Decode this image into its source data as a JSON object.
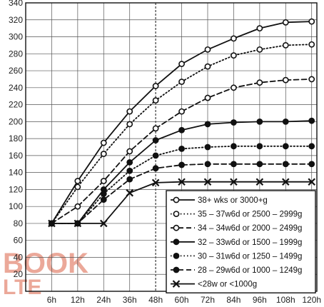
{
  "chart_data": {
    "type": "line",
    "title": "",
    "xlabel": "",
    "ylabel": "",
    "x": [
      "6h",
      "12h",
      "24h",
      "36h",
      "48h",
      "60h",
      "72h",
      "84h",
      "96h",
      "108h",
      "120h"
    ],
    "ylim": [
      0,
      340
    ],
    "yticks": [
      0,
      20,
      40,
      60,
      80,
      100,
      120,
      140,
      160,
      180,
      200,
      220,
      240,
      260,
      280,
      300,
      320,
      340
    ],
    "grid": true,
    "legend_position": "bottom-right",
    "series": [
      {
        "name": "38+ wks or 3000+g",
        "style": "solid",
        "marker": "open-circle",
        "color": "#111111",
        "values": [
          80,
          130,
          175,
          212,
          242,
          268,
          285,
          298,
          310,
          317,
          318
        ]
      },
      {
        "name": "35 – 37w6d or 2500 – 2999g",
        "style": "dotted",
        "marker": "open-circle",
        "color": "#111111",
        "values": [
          80,
          123,
          162,
          197,
          225,
          247,
          265,
          278,
          285,
          290,
          291
        ]
      },
      {
        "name": "34 – 34w6d or 2000 – 2499g",
        "style": "dashed",
        "marker": "open-circle",
        "color": "#111111",
        "values": [
          80,
          100,
          130,
          165,
          192,
          212,
          228,
          240,
          246,
          249,
          250
        ]
      },
      {
        "name": "32 – 33w6d or 1500 – 1999g",
        "style": "solid",
        "marker": "filled-circle",
        "color": "#111111",
        "values": [
          80,
          80,
          120,
          152,
          178,
          190,
          197,
          199,
          200,
          200,
          201
        ]
      },
      {
        "name": "30 – 31w6d or 1250 – 1499g",
        "style": "dotted",
        "marker": "filled-circle",
        "color": "#111111",
        "values": [
          80,
          80,
          115,
          142,
          160,
          168,
          170,
          171,
          171,
          171,
          171
        ]
      },
      {
        "name": "28 – 29w6d or 1000 – 1249g",
        "style": "dashed",
        "marker": "filled-circle",
        "color": "#111111",
        "values": [
          80,
          80,
          108,
          132,
          145,
          149,
          150,
          150,
          150,
          150,
          150
        ]
      },
      {
        "name": "<28w or <1000g",
        "style": "solid",
        "marker": "x",
        "color": "#111111",
        "values": [
          80,
          80,
          80,
          116,
          128,
          129,
          129,
          129,
          129,
          129,
          129
        ]
      }
    ]
  },
  "watermark": {
    "line1": "BOOK",
    "line2": "LTE",
    "color": "#e58b78"
  }
}
